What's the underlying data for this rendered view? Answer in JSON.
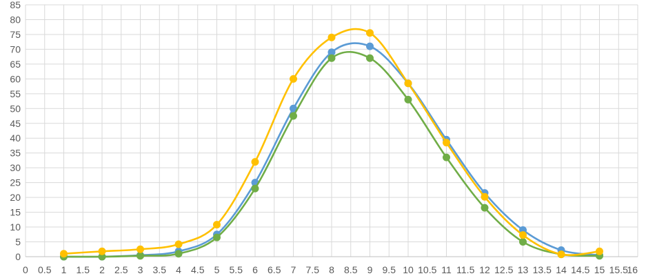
{
  "chart_data": {
    "type": "scatter",
    "smooth": true,
    "title": "",
    "xlabel": "",
    "ylabel": "",
    "grid": true,
    "legend": "none",
    "xlim": [
      0,
      16
    ],
    "ylim": [
      0,
      85
    ],
    "x_ticks": [
      "0",
      "0.5",
      "1",
      "1.5",
      "2",
      "2.5",
      "3",
      "3.5",
      "4",
      "4.5",
      "5",
      "5.5",
      "6",
      "6.5",
      "7",
      "7.5",
      "8",
      "8.5",
      "9",
      "9.5",
      "10",
      "10.5",
      "11",
      "11.5",
      "12",
      "12.5",
      "13",
      "13.5",
      "14",
      "14.5",
      "15",
      "15.5",
      "16"
    ],
    "y_ticks": [
      "0",
      "5",
      "10",
      "15",
      "20",
      "25",
      "30",
      "35",
      "40",
      "45",
      "50",
      "55",
      "60",
      "65",
      "70",
      "75",
      "80",
      "85"
    ],
    "series": [
      {
        "color": "#5b9bd5",
        "x": [
          1,
          2,
          3,
          4,
          5,
          6,
          7,
          8,
          9,
          10,
          11,
          12,
          13,
          14,
          15
        ],
        "y": [
          0,
          0,
          0.5,
          1.8,
          7.5,
          25,
          50,
          69,
          71,
          58.5,
          39.5,
          21.5,
          9,
          2.2,
          0.5
        ]
      },
      {
        "color": "#70ad47",
        "x": [
          1,
          2,
          3,
          4,
          5,
          6,
          7,
          8,
          9,
          10,
          11,
          12,
          13,
          14,
          15
        ],
        "y": [
          0,
          0,
          0.3,
          1,
          6.5,
          23,
          47.5,
          67,
          67,
          53,
          33.5,
          16.5,
          5,
          0.8,
          0.3
        ]
      },
      {
        "color": "#ffc000",
        "x": [
          1,
          2,
          3,
          4,
          5,
          6,
          7,
          8,
          9,
          10,
          11,
          12,
          13,
          14,
          15
        ],
        "y": [
          1,
          1.8,
          2.5,
          4.2,
          10.8,
          32,
          60,
          74,
          75.5,
          58.5,
          38.5,
          20.2,
          7.3,
          0.8,
          1.8
        ]
      }
    ]
  }
}
